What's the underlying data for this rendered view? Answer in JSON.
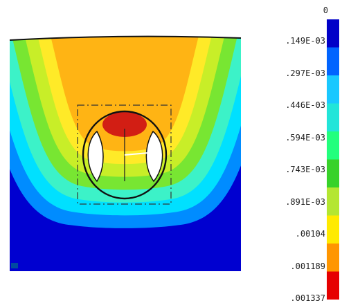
{
  "colorbar": {
    "labels": [
      "0",
      ".149E-03",
      ".297E-03",
      ".446E-03",
      ".594E-03",
      ".743E-03",
      ".891E-03",
      ".00104",
      ".001189",
      ".001337"
    ],
    "colors": [
      "#0000c8",
      "#0064ff",
      "#19c8ff",
      "#22e5d9",
      "#22ff7d",
      "#38d22a",
      "#b4e632",
      "#ffea00",
      "#ff9600",
      "#e60000"
    ]
  },
  "model": {
    "ring_colors": [
      "#0000d0",
      "#008cff",
      "#00e0ff",
      "#3cf2c8",
      "#78e632",
      "#c8ee28",
      "#ffea28",
      "#ffb414"
    ],
    "core_color": "#d21e14"
  }
}
